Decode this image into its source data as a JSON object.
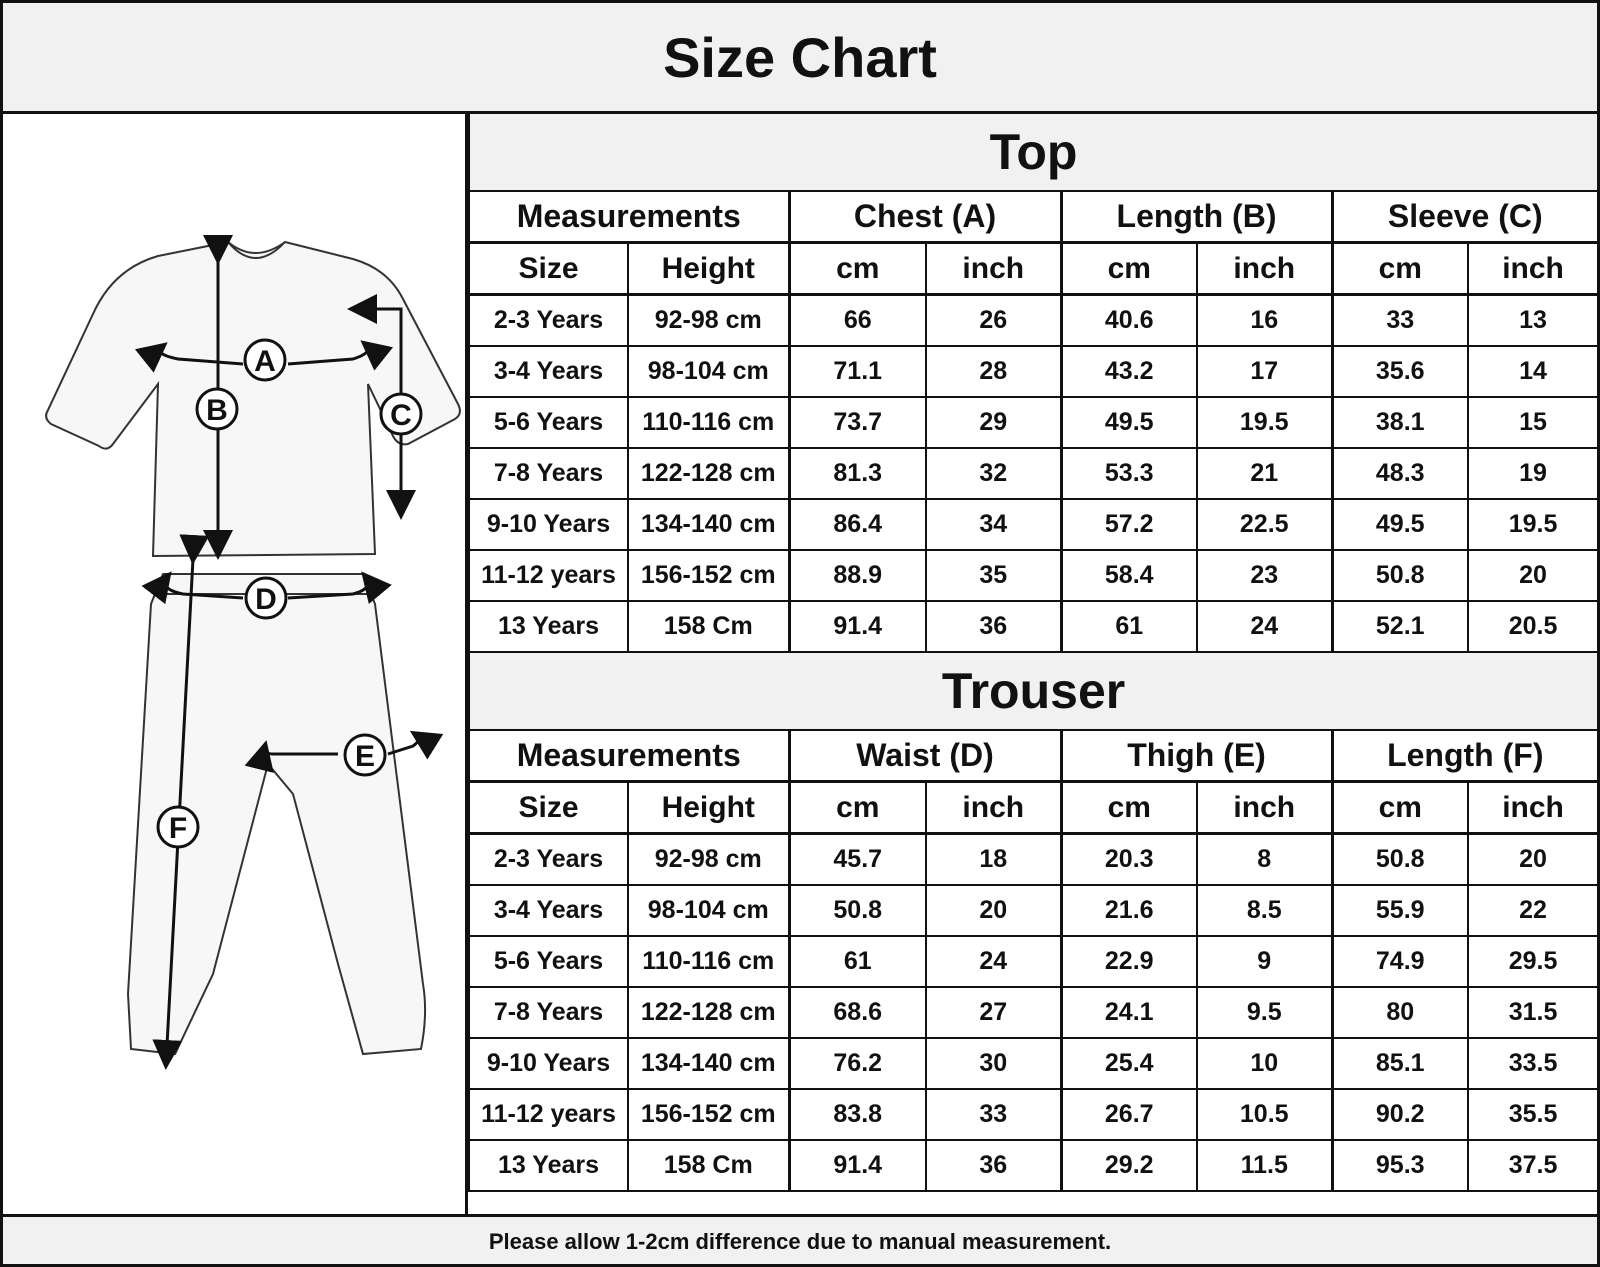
{
  "title": "Size Chart",
  "illustration": {
    "labels": [
      "A",
      "B",
      "C",
      "D",
      "E",
      "F"
    ]
  },
  "top": {
    "title": "Top",
    "group_headers": [
      "Measurements",
      "Chest (A)",
      "Length (B)",
      "Sleeve (C)"
    ],
    "sub_headers": [
      "Size",
      "Height",
      "cm",
      "inch",
      "cm",
      "inch",
      "cm",
      "inch"
    ],
    "rows": [
      [
        "2-3 Years",
        "92-98 cm",
        "66",
        "26",
        "40.6",
        "16",
        "33",
        "13"
      ],
      [
        "3-4 Years",
        "98-104 cm",
        "71.1",
        "28",
        "43.2",
        "17",
        "35.6",
        "14"
      ],
      [
        "5-6 Years",
        "110-116 cm",
        "73.7",
        "29",
        "49.5",
        "19.5",
        "38.1",
        "15"
      ],
      [
        "7-8 Years",
        "122-128 cm",
        "81.3",
        "32",
        "53.3",
        "21",
        "48.3",
        "19"
      ],
      [
        "9-10 Years",
        "134-140 cm",
        "86.4",
        "34",
        "57.2",
        "22.5",
        "49.5",
        "19.5"
      ],
      [
        "11-12 years",
        "156-152 cm",
        "88.9",
        "35",
        "58.4",
        "23",
        "50.8",
        "20"
      ],
      [
        "13 Years",
        "158 Cm",
        "91.4",
        "36",
        "61",
        "24",
        "52.1",
        "20.5"
      ]
    ]
  },
  "trouser": {
    "title": "Trouser",
    "group_headers": [
      "Measurements",
      "Waist (D)",
      "Thigh (E)",
      "Length (F)"
    ],
    "sub_headers": [
      "Size",
      "Height",
      "cm",
      "inch",
      "cm",
      "inch",
      "cm",
      "inch"
    ],
    "rows": [
      [
        "2-3 Years",
        "92-98 cm",
        "45.7",
        "18",
        "20.3",
        "8",
        "50.8",
        "20"
      ],
      [
        "3-4 Years",
        "98-104 cm",
        "50.8",
        "20",
        "21.6",
        "8.5",
        "55.9",
        "22"
      ],
      [
        "5-6 Years",
        "110-116 cm",
        "61",
        "24",
        "22.9",
        "9",
        "74.9",
        "29.5"
      ],
      [
        "7-8 Years",
        "122-128 cm",
        "68.6",
        "27",
        "24.1",
        "9.5",
        "80",
        "31.5"
      ],
      [
        "9-10 Years",
        "134-140 cm",
        "76.2",
        "30",
        "25.4",
        "10",
        "85.1",
        "33.5"
      ],
      [
        "11-12 years",
        "156-152 cm",
        "83.8",
        "33",
        "26.7",
        "10.5",
        "90.2",
        "35.5"
      ],
      [
        "13 Years",
        "158 Cm",
        "91.4",
        "36",
        "29.2",
        "11.5",
        "95.3",
        "37.5"
      ]
    ]
  },
  "footer": "Please allow 1-2cm difference due to manual measurement."
}
